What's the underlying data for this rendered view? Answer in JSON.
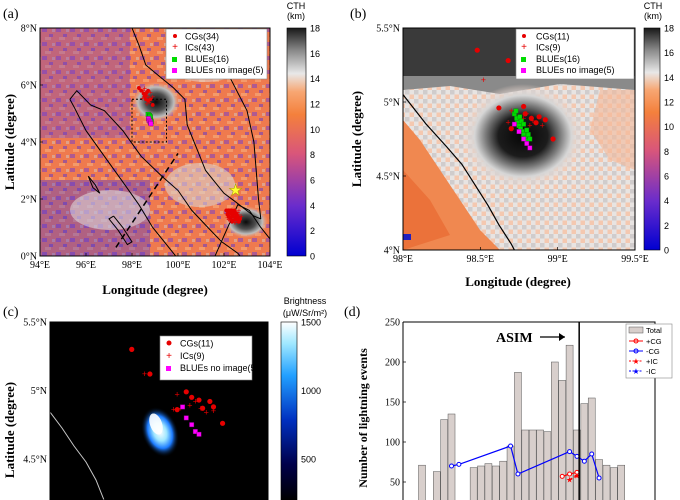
{
  "panels": {
    "a": {
      "tag": "(a)",
      "xlabel": "Longitude (degree)",
      "ylabel": "Latitude (degree)",
      "cbar_title": "CTH",
      "cbar_unit": "(km)"
    },
    "b": {
      "tag": "(b)",
      "xlabel": "Longitude (degree)",
      "ylabel": "Latitude (degree)",
      "cbar_title": "CTH",
      "cbar_unit": "(km)"
    },
    "c": {
      "tag": "(c)",
      "ylabel": "Latitude (degree)",
      "cbar_title": "Brightness",
      "cbar_unit": "(μW/Sr/m²)"
    },
    "d": {
      "tag": "(d)",
      "ylabel": "Number of lightning events",
      "annotation": "ASIM"
    }
  },
  "colors": {
    "cg": "#e60000",
    "ic": "#e60000",
    "blue": "#00dd00",
    "blue_noimg": "#ff00ff",
    "pos_cg": "#ff0000",
    "neg_cg": "#0000ff",
    "bar": "#d8cfcc"
  },
  "chart_data": [
    {
      "panel": "a",
      "type": "scatter",
      "xlim": [
        94,
        104
      ],
      "ylim": [
        0,
        8
      ],
      "xticks": [
        "94°E",
        "96°E",
        "98°E",
        "100°E",
        "102°E",
        "104°E"
      ],
      "yticks": [
        "0°N",
        "2°N",
        "4°N",
        "6°N",
        "8°N"
      ],
      "cbar_range": [
        0,
        18
      ],
      "cbar_ticks": [
        "0",
        "2",
        "4",
        "6",
        "8",
        "10",
        "12",
        "14",
        "16",
        "18"
      ],
      "legend": [
        "CGs(34)",
        "ICs(43)",
        "BLUEs(16)",
        "BLUEs no image(5)"
      ],
      "cg": [
        [
          98.3,
          5.9
        ],
        [
          98.5,
          5.7
        ],
        [
          98.6,
          5.65
        ],
        [
          98.7,
          5.8
        ],
        [
          98.8,
          5.5
        ],
        [
          98.4,
          5.8
        ],
        [
          98.55,
          5.6
        ],
        [
          98.9,
          5.3
        ],
        [
          98.6,
          5.5
        ],
        [
          98.7,
          5.45
        ],
        [
          98.65,
          5.75
        ],
        [
          102.1,
          1.6
        ],
        [
          102.2,
          1.55
        ],
        [
          102.3,
          1.5
        ],
        [
          102.35,
          1.45
        ],
        [
          102.4,
          1.4
        ],
        [
          102.25,
          1.35
        ],
        [
          102.3,
          1.3
        ],
        [
          102.45,
          1.5
        ],
        [
          102.15,
          1.45
        ],
        [
          102.5,
          1.35
        ],
        [
          102.55,
          1.3
        ],
        [
          102.35,
          1.55
        ],
        [
          102.2,
          1.6
        ],
        [
          102.6,
          1.4
        ],
        [
          102.4,
          1.25
        ],
        [
          102.3,
          1.6
        ],
        [
          102.5,
          1.5
        ],
        [
          102.65,
          1.2
        ],
        [
          102.2,
          1.4
        ],
        [
          102.45,
          1.6
        ],
        [
          102.55,
          1.45
        ],
        [
          102.35,
          1.2
        ],
        [
          102.7,
          1.3
        ]
      ],
      "ic": [
        [
          98.35,
          5.85
        ],
        [
          98.5,
          5.8
        ],
        [
          98.6,
          5.7
        ],
        [
          98.7,
          5.6
        ],
        [
          98.8,
          5.75
        ],
        [
          98.45,
          5.55
        ],
        [
          98.75,
          5.4
        ],
        [
          98.9,
          5.6
        ],
        [
          98.65,
          5.35
        ],
        [
          98.55,
          5.9
        ],
        [
          102.1,
          1.5
        ],
        [
          102.2,
          1.45
        ],
        [
          102.3,
          1.55
        ],
        [
          102.4,
          1.35
        ],
        [
          102.5,
          1.45
        ],
        [
          102.25,
          1.6
        ],
        [
          102.35,
          1.4
        ],
        [
          102.45,
          1.3
        ],
        [
          102.15,
          1.35
        ],
        [
          102.55,
          1.55
        ],
        [
          102.6,
          1.3
        ],
        [
          102.3,
          1.25
        ],
        [
          102.4,
          1.5
        ],
        [
          102.5,
          1.6
        ],
        [
          102.2,
          1.3
        ],
        [
          102.65,
          1.45
        ],
        [
          102.7,
          1.35
        ],
        [
          102.35,
          1.65
        ],
        [
          102.45,
          1.2
        ],
        [
          102.25,
          1.25
        ],
        [
          102.55,
          1.25
        ],
        [
          102.6,
          1.55
        ],
        [
          102.1,
          1.6
        ],
        [
          102.75,
          1.4
        ],
        [
          102.3,
          1.45
        ],
        [
          102.4,
          1.6
        ],
        [
          102.5,
          1.2
        ],
        [
          102.2,
          1.55
        ],
        [
          102.65,
          1.6
        ],
        [
          102.35,
          1.3
        ],
        [
          102.15,
          1.5
        ],
        [
          102.45,
          1.45
        ],
        [
          102.6,
          1.2
        ]
      ],
      "blues": [
        [
          98.72,
          4.92
        ],
        [
          98.74,
          4.88
        ],
        [
          98.76,
          4.84
        ],
        [
          98.78,
          4.8
        ],
        [
          98.8,
          4.76
        ],
        [
          98.75,
          4.9
        ],
        [
          98.77,
          4.86
        ],
        [
          98.79,
          4.82
        ],
        [
          98.81,
          4.78
        ],
        [
          98.73,
          4.95
        ],
        [
          98.82,
          4.74
        ],
        [
          98.7,
          4.97
        ],
        [
          98.84,
          4.71
        ],
        [
          98.76,
          4.93
        ],
        [
          98.8,
          4.88
        ],
        [
          98.78,
          4.9
        ]
      ],
      "blues_noimg": [
        [
          98.72,
          4.82
        ],
        [
          98.74,
          4.76
        ],
        [
          98.78,
          4.72
        ],
        [
          98.8,
          4.68
        ],
        [
          98.82,
          4.64
        ]
      ],
      "coastlines": [
        [
          [
            95.3,
            5.5
          ],
          [
            95.6,
            5.8
          ],
          [
            96.2,
            5.3
          ],
          [
            96.8,
            5.1
          ],
          [
            97.6,
            4.4
          ],
          [
            98.4,
            3.5
          ],
          [
            99.3,
            2.8
          ],
          [
            100.0,
            2.3
          ],
          [
            100.6,
            1.6
          ],
          [
            101.3,
            1.0
          ],
          [
            101.9,
            0.5
          ],
          [
            102.6,
            0.1
          ],
          [
            103.0,
            -0.3
          ]
        ],
        [
          [
            95.3,
            5.5
          ],
          [
            95.5,
            5.2
          ],
          [
            96.0,
            4.4
          ],
          [
            96.8,
            3.5
          ],
          [
            97.6,
            2.6
          ],
          [
            98.3,
            1.8
          ],
          [
            98.9,
            1.0
          ],
          [
            99.5,
            0.4
          ],
          [
            100.0,
            -0.1
          ]
        ],
        [
          [
            98.0,
            8.0
          ],
          [
            98.3,
            7.4
          ],
          [
            98.6,
            6.7
          ],
          [
            99.2,
            6.3
          ],
          [
            99.8,
            5.9
          ],
          [
            100.3,
            5.5
          ],
          [
            100.4,
            4.6
          ],
          [
            100.8,
            3.8
          ],
          [
            101.2,
            3.0
          ],
          [
            101.6,
            2.6
          ],
          [
            102.0,
            2.2
          ],
          [
            102.5,
            1.9
          ],
          [
            103.3,
            1.4
          ],
          [
            103.6,
            1.3
          ]
        ],
        [
          [
            103.6,
            1.3
          ],
          [
            103.5,
            2.0
          ],
          [
            103.4,
            3.0
          ],
          [
            103.3,
            4.0
          ],
          [
            103.0,
            5.1
          ],
          [
            102.3,
            6.2
          ],
          [
            101.6,
            6.7
          ],
          [
            101.0,
            7.0
          ]
        ],
        [
          [
            96.1,
            2.8
          ],
          [
            96.4,
            2.5
          ],
          [
            96.6,
            2.2
          ],
          [
            96.3,
            2.4
          ],
          [
            96.1,
            2.8
          ]
        ],
        [
          [
            97.2,
            1.4
          ],
          [
            97.6,
            1.0
          ],
          [
            98.0,
            0.5
          ],
          [
            97.8,
            0.4
          ],
          [
            97.4,
            0.9
          ],
          [
            97.0,
            1.3
          ],
          [
            97.2,
            1.4
          ]
        ],
        [
          [
            101.5,
            -0.2
          ],
          [
            102.6,
            1.8
          ],
          [
            103.1,
            1.6
          ],
          [
            103.6,
            1.0
          ],
          [
            104.0,
            0.6
          ]
        ]
      ],
      "star": [
        102.5,
        2.3
      ],
      "dashed_line": [
        [
          97.3,
          0.3
        ],
        [
          100.0,
          3.6
        ]
      ],
      "zoom_box": [
        [
          98,
          99.5
        ],
        [
          4,
          5.5
        ]
      ]
    },
    {
      "panel": "b",
      "type": "scatter",
      "xlim": [
        98,
        99.5
      ],
      "ylim": [
        4,
        5.5
      ],
      "xticks": [
        "98°E",
        "98.5°E",
        "99°E",
        "99.5°E"
      ],
      "yticks": [
        "4°N",
        "4.5°N",
        "5°N",
        "5.5°N"
      ],
      "cbar_range": [
        0,
        18
      ],
      "cbar_ticks": [
        "0",
        "2",
        "4",
        "6",
        "8",
        "10",
        "12",
        "14",
        "16",
        "18"
      ],
      "legend": [
        "CGs(11)",
        "ICs(9)",
        "BLUEs(16)",
        "BLUEs no image(5)"
      ],
      "cg": [
        [
          98.48,
          5.35
        ],
        [
          98.68,
          5.28
        ],
        [
          98.62,
          4.96
        ],
        [
          98.79,
          4.92
        ],
        [
          98.92,
          4.88
        ],
        [
          98.97,
          4.75
        ],
        [
          98.83,
          4.89
        ],
        [
          98.86,
          4.86
        ],
        [
          98.78,
          4.97
        ],
        [
          98.7,
          4.82
        ],
        [
          98.88,
          4.9
        ]
      ],
      "ic": [
        [
          98.52,
          5.15
        ],
        [
          98.7,
          4.94
        ],
        [
          98.8,
          4.92
        ],
        [
          98.78,
          4.89
        ],
        [
          98.84,
          4.87
        ],
        [
          98.74,
          4.88
        ],
        [
          98.9,
          4.84
        ],
        [
          98.68,
          4.86
        ],
        [
          98.82,
          4.84
        ]
      ],
      "blues": [
        [
          98.72,
          4.92
        ],
        [
          98.735,
          4.89
        ],
        [
          98.74,
          4.86
        ],
        [
          98.75,
          4.84
        ],
        [
          98.76,
          4.82
        ],
        [
          98.77,
          4.8
        ],
        [
          98.78,
          4.78
        ],
        [
          98.79,
          4.76
        ],
        [
          98.8,
          4.74
        ],
        [
          98.73,
          4.94
        ],
        [
          98.755,
          4.9
        ],
        [
          98.765,
          4.87
        ],
        [
          98.78,
          4.85
        ],
        [
          98.8,
          4.81
        ],
        [
          98.81,
          4.78
        ],
        [
          98.82,
          4.75
        ]
      ],
      "blues_noimg": [
        [
          98.72,
          4.85
        ],
        [
          98.75,
          4.8
        ],
        [
          98.78,
          4.75
        ],
        [
          98.8,
          4.72
        ],
        [
          98.82,
          4.69
        ]
      ],
      "coastline": [
        [
          98.0,
          5.05
        ],
        [
          98.15,
          4.85
        ],
        [
          98.28,
          4.7
        ],
        [
          98.38,
          4.58
        ],
        [
          98.46,
          4.45
        ],
        [
          98.55,
          4.3
        ],
        [
          98.62,
          4.17
        ],
        [
          98.7,
          4.04
        ],
        [
          98.72,
          4.0
        ]
      ]
    },
    {
      "panel": "c",
      "type": "scatter",
      "ylim": [
        4.2,
        5.5
      ],
      "yticks": [
        "4.5°N",
        "5°N",
        "5.5°N"
      ],
      "cbar_range": [
        200,
        1500
      ],
      "cbar_ticks": [
        "500",
        "1000",
        "1500"
      ],
      "legend": [
        "CGs(11)",
        "ICs(9)",
        "BLUEs no image(5)"
      ],
      "cg": [
        [
          98.45,
          5.3
        ],
        [
          98.65,
          5.25
        ],
        [
          98.55,
          5.12
        ],
        [
          98.78,
          4.95
        ],
        [
          98.82,
          4.93
        ],
        [
          98.88,
          4.92
        ],
        [
          98.9,
          4.88
        ],
        [
          98.84,
          4.87
        ],
        [
          98.7,
          4.86
        ],
        [
          98.95,
          4.76
        ],
        [
          98.75,
          4.99
        ]
      ],
      "ic": [
        [
          98.52,
          5.12
        ],
        [
          98.7,
          4.97
        ],
        [
          98.8,
          4.92
        ],
        [
          98.77,
          4.89
        ],
        [
          98.83,
          4.87
        ],
        [
          98.86,
          4.84
        ],
        [
          98.72,
          4.87
        ],
        [
          98.9,
          4.85
        ],
        [
          98.68,
          4.86
        ]
      ],
      "blues_noimg": [
        [
          98.73,
          4.88
        ],
        [
          98.75,
          4.8
        ],
        [
          98.78,
          4.75
        ],
        [
          98.8,
          4.7
        ],
        [
          98.82,
          4.68
        ]
      ]
    },
    {
      "panel": "d",
      "type": "bar",
      "ylim": [
        0,
        250
      ],
      "yticks": [
        "50",
        "100",
        "150",
        "200",
        "250"
      ],
      "legend": [
        "Total",
        "+CG",
        "-CG",
        "+IC",
        "-IC"
      ],
      "x_index": [
        0,
        29
      ],
      "asim_index": 21.3,
      "total": [
        71,
        0,
        63,
        128,
        135,
        0,
        0,
        68,
        70,
        73,
        70,
        76,
        95,
        187,
        115,
        115,
        115,
        113,
        200,
        177,
        221,
        115,
        148,
        155,
        78,
        71,
        68,
        71,
        0,
        0
      ],
      "neg_cg": [
        [
          4,
          70
        ],
        [
          5,
          72
        ],
        [
          12,
          95
        ],
        [
          13,
          60
        ],
        [
          20,
          88
        ],
        [
          21,
          82
        ],
        [
          22,
          76
        ],
        [
          23,
          85
        ],
        [
          24,
          55
        ]
      ],
      "pos_cg": [
        [
          19,
          57
        ],
        [
          20,
          60
        ],
        [
          21,
          62
        ]
      ],
      "pos_ic": [
        [
          20,
          53
        ],
        [
          21,
          58
        ]
      ],
      "neg_ic": []
    }
  ]
}
